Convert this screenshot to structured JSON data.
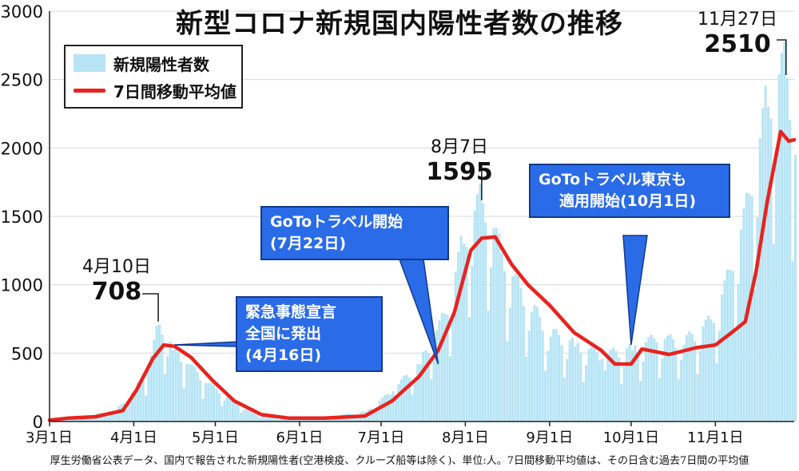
{
  "title": "新型コロナ新規国内陽性者数の推移",
  "legend": {
    "bars": "新規陽性者数",
    "line": "7日間移動平均値"
  },
  "footnote": "厚生労働省公表データ、国内で報告された新規陽性者(空港検疫、クルーズ船等は除く)、単位:人。7日間移動平均値は、その日含む過去7日間の平均値",
  "annotations": {
    "emergency": [
      "緊急事態宣言",
      "全国に発出",
      "(4月16日)"
    ],
    "goto_start": [
      "GoToトラベル開始",
      "(7月22日)"
    ],
    "goto_tokyo": [
      "GoToトラベル東京も",
      "適用開始(10月1日)"
    ]
  },
  "peaks": {
    "apr": {
      "date": "4月10日",
      "value": "708"
    },
    "aug": {
      "date": "8月7日",
      "value": "1595"
    },
    "nov": {
      "date": "11月27日",
      "value": "2510"
    }
  },
  "colors": {
    "bars": "#b6e4f5",
    "line": "#e8231f",
    "callout": "#2a6be8"
  },
  "chart_data": {
    "type": "bar",
    "title": "新型コロナ新規国内陽性者数の推移",
    "ylim": [
      0,
      3000
    ],
    "yticks": [
      0,
      500,
      1000,
      1500,
      2000,
      2500,
      3000
    ],
    "xlim": [
      "2020-03-01",
      "2020-11-30"
    ],
    "xticks": [
      {
        "date": "2020-03-01",
        "label": "3月1日"
      },
      {
        "date": "2020-04-01",
        "label": "4月1日"
      },
      {
        "date": "2020-05-01",
        "label": "5月1日"
      },
      {
        "date": "2020-06-01",
        "label": "6月1日"
      },
      {
        "date": "2020-07-01",
        "label": "7月1日"
      },
      {
        "date": "2020-08-01",
        "label": "8月1日"
      },
      {
        "date": "2020-09-01",
        "label": "9月1日"
      },
      {
        "date": "2020-10-01",
        "label": "10月1日"
      },
      {
        "date": "2020-11-01",
        "label": "11月1日"
      }
    ],
    "series": [
      {
        "name": "新規陽性者数",
        "type": "bar",
        "anchors": [
          [
            "2020-03-01",
            10
          ],
          [
            "2020-03-15",
            40
          ],
          [
            "2020-03-25",
            80
          ],
          [
            "2020-04-01",
            220
          ],
          [
            "2020-04-06",
            380
          ],
          [
            "2020-04-10",
            708
          ],
          [
            "2020-04-15",
            520
          ],
          [
            "2020-04-20",
            420
          ],
          [
            "2020-04-27",
            280
          ],
          [
            "2020-05-05",
            180
          ],
          [
            "2020-05-15",
            60
          ],
          [
            "2020-05-25",
            25
          ],
          [
            "2020-06-10",
            30
          ],
          [
            "2020-06-25",
            70
          ],
          [
            "2020-07-05",
            220
          ],
          [
            "2020-07-15",
            420
          ],
          [
            "2020-07-25",
            780
          ],
          [
            "2020-07-31",
            1300
          ],
          [
            "2020-08-07",
            1595
          ],
          [
            "2020-08-15",
            1100
          ],
          [
            "2020-08-25",
            800
          ],
          [
            "2020-09-01",
            620
          ],
          [
            "2020-09-10",
            550
          ],
          [
            "2020-09-20",
            460
          ],
          [
            "2020-10-01",
            520
          ],
          [
            "2020-10-10",
            580
          ],
          [
            "2020-10-20",
            560
          ],
          [
            "2020-10-31",
            720
          ],
          [
            "2020-11-07",
            1100
          ],
          [
            "2020-11-14",
            1650
          ],
          [
            "2020-11-20",
            2300
          ],
          [
            "2020-11-27",
            2510
          ],
          [
            "2020-11-30",
            1950
          ]
        ]
      },
      {
        "name": "7日間移動平均値",
        "type": "line",
        "anchors": [
          [
            "2020-03-01",
            10
          ],
          [
            "2020-03-08",
            25
          ],
          [
            "2020-03-18",
            35
          ],
          [
            "2020-03-28",
            80
          ],
          [
            "2020-04-02",
            230
          ],
          [
            "2020-04-08",
            460
          ],
          [
            "2020-04-12",
            560
          ],
          [
            "2020-04-16",
            550
          ],
          [
            "2020-04-22",
            470
          ],
          [
            "2020-04-30",
            300
          ],
          [
            "2020-05-08",
            150
          ],
          [
            "2020-05-18",
            50
          ],
          [
            "2020-05-28",
            25
          ],
          [
            "2020-06-10",
            25
          ],
          [
            "2020-06-25",
            40
          ],
          [
            "2020-07-05",
            150
          ],
          [
            "2020-07-15",
            330
          ],
          [
            "2020-07-22",
            520
          ],
          [
            "2020-07-28",
            800
          ],
          [
            "2020-08-03",
            1250
          ],
          [
            "2020-08-07",
            1340
          ],
          [
            "2020-08-12",
            1350
          ],
          [
            "2020-08-18",
            1150
          ],
          [
            "2020-08-24",
            1000
          ],
          [
            "2020-09-01",
            850
          ],
          [
            "2020-09-10",
            650
          ],
          [
            "2020-09-20",
            520
          ],
          [
            "2020-09-25",
            420
          ],
          [
            "2020-10-01",
            420
          ],
          [
            "2020-10-05",
            530
          ],
          [
            "2020-10-15",
            490
          ],
          [
            "2020-10-25",
            540
          ],
          [
            "2020-11-01",
            560
          ],
          [
            "2020-11-07",
            650
          ],
          [
            "2020-11-12",
            730
          ],
          [
            "2020-11-16",
            1100
          ],
          [
            "2020-11-20",
            1600
          ],
          [
            "2020-11-25",
            2120
          ],
          [
            "2020-11-28",
            2050
          ],
          [
            "2020-11-30",
            2060
          ]
        ]
      }
    ]
  }
}
